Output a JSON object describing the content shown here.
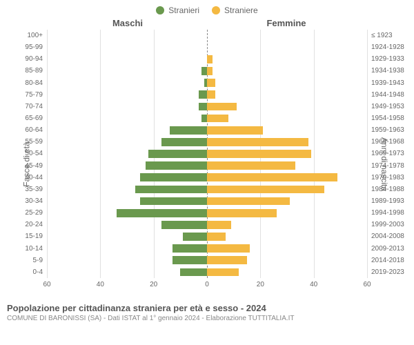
{
  "legend": {
    "male_label": "Stranieri",
    "female_label": "Straniere"
  },
  "column_headers": {
    "left": "Maschi",
    "right": "Femmine"
  },
  "axis_labels": {
    "left": "Fasce di età",
    "right": "Anni di nascita"
  },
  "chart": {
    "type": "population-pyramid",
    "max_value": 60,
    "x_ticks_left": [
      60,
      40,
      20,
      0
    ],
    "x_ticks_right": [
      0,
      20,
      40,
      60
    ],
    "male_color": "#6a994e",
    "female_color": "#f4b942",
    "grid_color": "#e0e0e0",
    "center_line_color": "#888888",
    "background_color": "#ffffff",
    "label_fontsize": 10,
    "rows": [
      {
        "age": "100+",
        "birth": "≤ 1923",
        "m": 0,
        "f": 0
      },
      {
        "age": "95-99",
        "birth": "1924-1928",
        "m": 0,
        "f": 0
      },
      {
        "age": "90-94",
        "birth": "1929-1933",
        "m": 0,
        "f": 2
      },
      {
        "age": "85-89",
        "birth": "1934-1938",
        "m": 2,
        "f": 2
      },
      {
        "age": "80-84",
        "birth": "1939-1943",
        "m": 1,
        "f": 3
      },
      {
        "age": "75-79",
        "birth": "1944-1948",
        "m": 3,
        "f": 3
      },
      {
        "age": "70-74",
        "birth": "1949-1953",
        "m": 3,
        "f": 11
      },
      {
        "age": "65-69",
        "birth": "1954-1958",
        "m": 2,
        "f": 8
      },
      {
        "age": "60-64",
        "birth": "1959-1963",
        "m": 14,
        "f": 21
      },
      {
        "age": "55-59",
        "birth": "1964-1968",
        "m": 17,
        "f": 38
      },
      {
        "age": "50-54",
        "birth": "1969-1973",
        "m": 22,
        "f": 39
      },
      {
        "age": "45-49",
        "birth": "1974-1978",
        "m": 23,
        "f": 33
      },
      {
        "age": "40-44",
        "birth": "1979-1983",
        "m": 25,
        "f": 49
      },
      {
        "age": "35-39",
        "birth": "1984-1988",
        "m": 27,
        "f": 44
      },
      {
        "age": "30-34",
        "birth": "1989-1993",
        "m": 25,
        "f": 31
      },
      {
        "age": "25-29",
        "birth": "1994-1998",
        "m": 34,
        "f": 26
      },
      {
        "age": "20-24",
        "birth": "1999-2003",
        "m": 17,
        "f": 9
      },
      {
        "age": "15-19",
        "birth": "2004-2008",
        "m": 9,
        "f": 7
      },
      {
        "age": "10-14",
        "birth": "2009-2013",
        "m": 13,
        "f": 16
      },
      {
        "age": "5-9",
        "birth": "2014-2018",
        "m": 13,
        "f": 15
      },
      {
        "age": "0-4",
        "birth": "2019-2023",
        "m": 10,
        "f": 12
      }
    ]
  },
  "footer": {
    "title": "Popolazione per cittadinanza straniera per età e sesso - 2024",
    "subtitle": "COMUNE DI BARONISSI (SA) - Dati ISTAT al 1° gennaio 2024 - Elaborazione TUTTITALIA.IT"
  }
}
